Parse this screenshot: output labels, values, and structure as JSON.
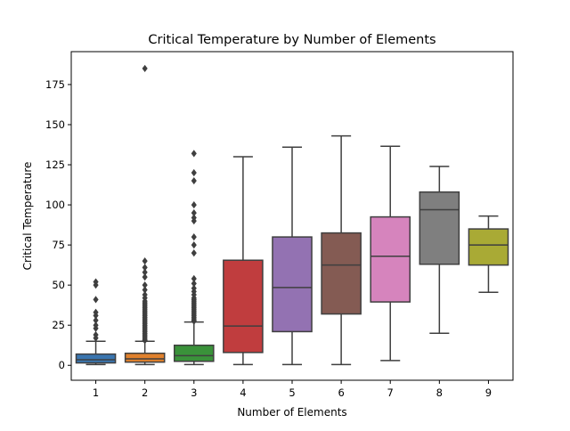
{
  "chart_data": {
    "type": "box",
    "title": "Critical Temperature by Number of Elements",
    "xlabel": "Number of Elements",
    "ylabel": "Critical Temperature",
    "ylim": [
      -9.3,
      195.5
    ],
    "yticks": [
      0,
      25,
      50,
      75,
      100,
      125,
      150,
      175
    ],
    "legend": "none",
    "grid": false,
    "categories": [
      "1",
      "2",
      "3",
      "4",
      "5",
      "6",
      "7",
      "8",
      "9"
    ],
    "boxes": [
      {
        "category": "1",
        "color": "#3a75af",
        "q1": 1.5,
        "median": 3.5,
        "q3": 7,
        "whislo": 0.5,
        "whishi": 15,
        "fliers": [
          17,
          19,
          23,
          25,
          28,
          31,
          33,
          41,
          50,
          52
        ]
      },
      {
        "category": "2",
        "color": "#e1812c",
        "q1": 2,
        "median": 4,
        "q3": 7.5,
        "whislo": 0.5,
        "whishi": 15,
        "fliers": [
          15.5,
          16,
          17,
          18,
          19,
          20,
          21,
          22,
          23,
          24,
          25,
          26,
          27,
          28,
          29,
          30,
          31,
          32,
          33,
          34,
          35,
          36,
          37,
          38,
          39,
          40,
          42,
          44,
          47,
          50,
          55,
          58,
          61,
          65,
          185
        ]
      },
      {
        "category": "3",
        "color": "#3a923a",
        "q1": 2.5,
        "median": 6,
        "q3": 12.5,
        "whislo": 0.5,
        "whishi": 27,
        "fliers": [
          27.5,
          28,
          29,
          30,
          31,
          32,
          33,
          34,
          35,
          36,
          37,
          38,
          39,
          40,
          41,
          42,
          44,
          46,
          48,
          51,
          54,
          70,
          75,
          80,
          90,
          92,
          95,
          100,
          115,
          120,
          132
        ]
      },
      {
        "category": "4",
        "color": "#c03d3e",
        "q1": 8,
        "median": 24.5,
        "q3": 65.5,
        "whislo": 0.5,
        "whishi": 130,
        "fliers": []
      },
      {
        "category": "5",
        "color": "#9372b2",
        "q1": 21,
        "median": 48.5,
        "q3": 80,
        "whislo": 0.5,
        "whishi": 136,
        "fliers": []
      },
      {
        "category": "6",
        "color": "#845b53",
        "q1": 32,
        "median": 62.5,
        "q3": 82.5,
        "whislo": 0.5,
        "whishi": 143,
        "fliers": []
      },
      {
        "category": "7",
        "color": "#d684bd",
        "q1": 39.5,
        "median": 68,
        "q3": 92.5,
        "whislo": 3,
        "whishi": 136.5,
        "fliers": []
      },
      {
        "category": "8",
        "color": "#7f7f7f",
        "q1": 63,
        "median": 97,
        "q3": 108,
        "whislo": 20,
        "whishi": 124,
        "fliers": []
      },
      {
        "category": "9",
        "color": "#a9aa35",
        "q1": 62.5,
        "median": 75,
        "q3": 85,
        "whislo": 45.5,
        "whishi": 93,
        "fliers": []
      }
    ]
  }
}
